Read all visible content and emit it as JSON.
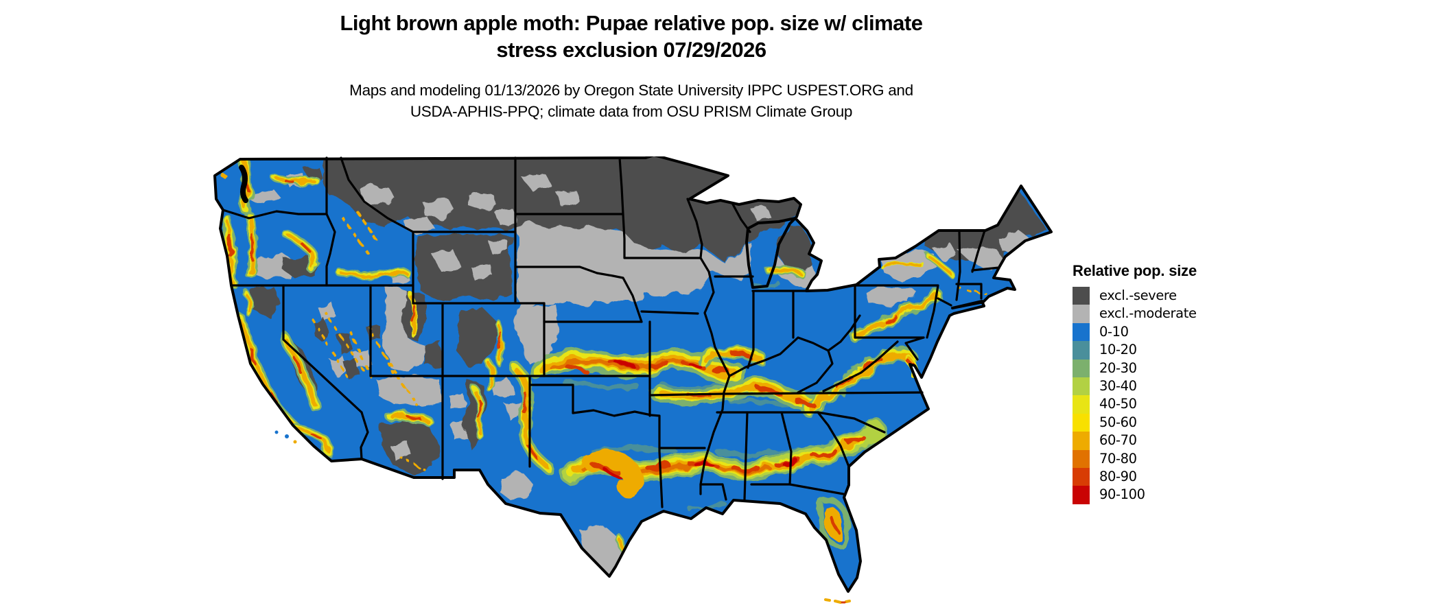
{
  "title_line1": "Light brown apple moth: Pupae relative pop. size w/ climate",
  "title_line2": "stress exclusion 07/29/2026",
  "subtitle_line1": "Maps and modeling 01/13/2026 by Oregon State University IPPC USPEST.ORG and",
  "subtitle_line2": "USDA-APHIS-PPQ; climate data from OSU PRISM Climate Group",
  "legend": {
    "title": "Relative pop. size",
    "items": [
      {
        "label": "excl.-severe",
        "color": "#4d4d4d"
      },
      {
        "label": "excl.-moderate",
        "color": "#b3b3b3"
      },
      {
        "label": "0-10",
        "color": "#1873cd"
      },
      {
        "label": "10-20",
        "color": "#4a8f9b"
      },
      {
        "label": "20-30",
        "color": "#7cb06d"
      },
      {
        "label": "30-40",
        "color": "#b2d143"
      },
      {
        "label": "40-50",
        "color": "#e8e415"
      },
      {
        "label": "50-60",
        "color": "#f8e000"
      },
      {
        "label": "60-70",
        "color": "#eeab00"
      },
      {
        "label": "70-80",
        "color": "#e17200"
      },
      {
        "label": "80-90",
        "color": "#d83c04"
      },
      {
        "label": "90-100",
        "color": "#c90303"
      }
    ]
  },
  "map": {
    "region": "Continental United States",
    "type": "raster choropleth with state borders",
    "border_color": "#000000",
    "water_color": "#ffffff"
  }
}
